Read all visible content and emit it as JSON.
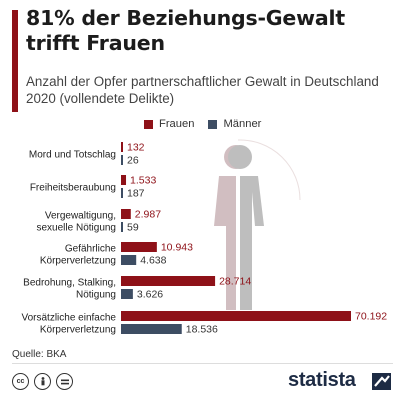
{
  "header": {
    "title": "81% der Beziehungs-Gewalt trifft Frauen",
    "subtitle": "Anzahl der Opfer partnerschaftlicher Gewalt in Deutschland 2020 (vollendete Delikte)"
  },
  "colors": {
    "frauen": "#8e1118",
    "maenner": "#3d4d63",
    "accent": "#8e1118",
    "figure": "#c9b5b8"
  },
  "chart_data": {
    "type": "bar",
    "orientation": "horizontal",
    "categories": [
      "Mord und Totschlag",
      "Freiheitsberaubung",
      "Vergewaltigung, sexuelle Nötigung",
      "Gefährliche Körperverletzung",
      "Bedrohung, Stalking, Nötigung",
      "Vorsätzliche einfache Körperverletzung"
    ],
    "series": [
      {
        "name": "Frauen",
        "values": [
          132,
          1533,
          2987,
          10943,
          28714,
          70192
        ],
        "labels": [
          "132",
          "1.533",
          "2.987",
          "10.943",
          "28.714",
          "70.192"
        ]
      },
      {
        "name": "Männer",
        "values": [
          26,
          187,
          59,
          4638,
          3626,
          18536
        ],
        "labels": [
          "26",
          "187",
          "59",
          "4.638",
          "3.626",
          "18.536"
        ]
      }
    ],
    "title": "81% der Beziehungs-Gewalt trifft Frauen",
    "xlim": [
      0,
      70192
    ],
    "grid": false,
    "legend": "top"
  },
  "footer": {
    "source": "Quelle: BKA",
    "brand": "statista"
  },
  "icons": [
    "cc-icon",
    "by-icon",
    "nd-icon",
    "statista-logo-icon",
    "woman-figure-icon",
    "man-figure-icon"
  ]
}
